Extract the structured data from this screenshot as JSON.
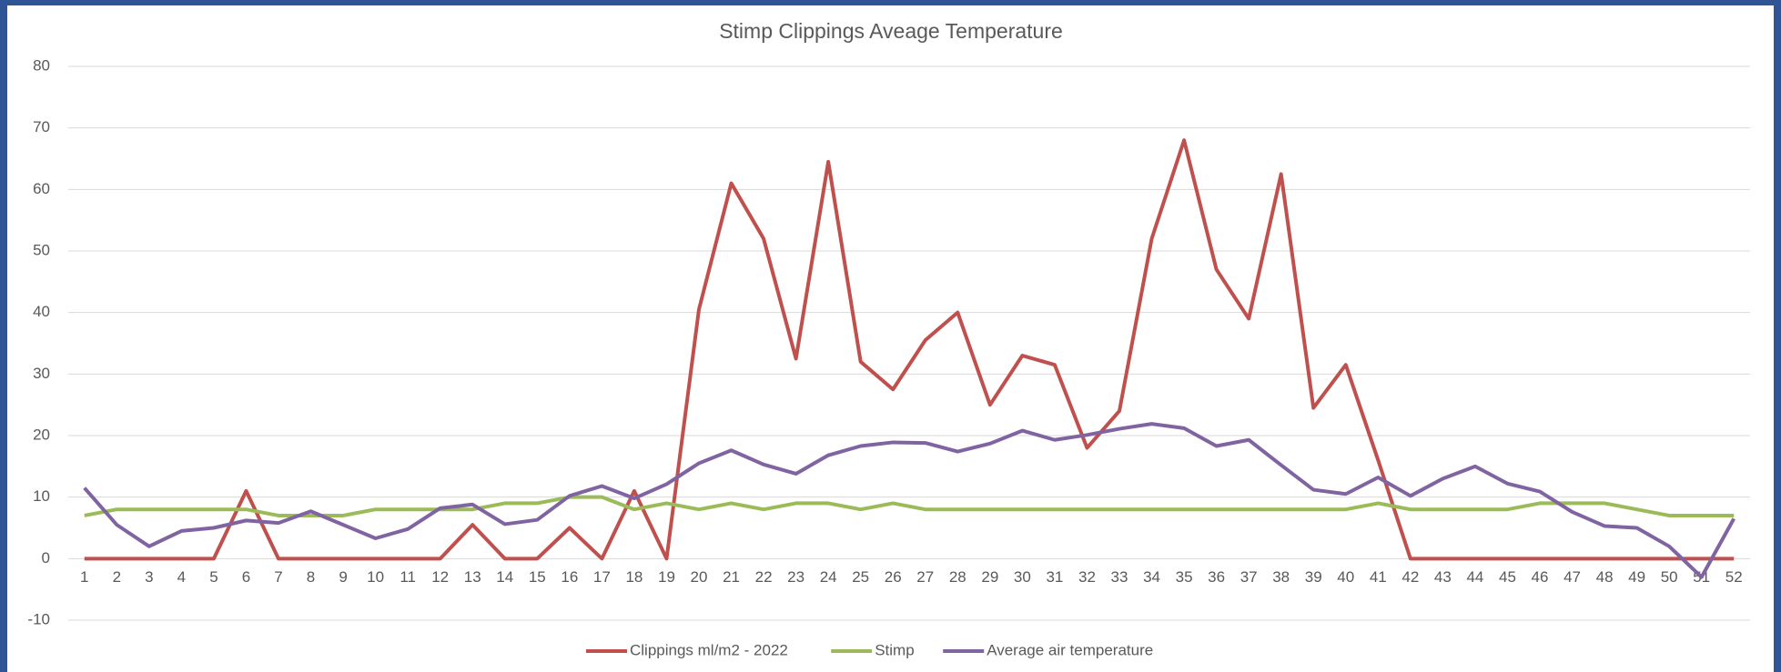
{
  "chart_data": {
    "type": "line",
    "title": "Stimp Clippings Aveage Temperature",
    "categories": [
      "1",
      "2",
      "3",
      "4",
      "5",
      "6",
      "7",
      "8",
      "9",
      "10",
      "11",
      "12",
      "13",
      "14",
      "15",
      "16",
      "17",
      "18",
      "19",
      "20",
      "21",
      "22",
      "23",
      "24",
      "25",
      "26",
      "27",
      "28",
      "29",
      "30",
      "31",
      "32",
      "33",
      "34",
      "35",
      "36",
      "37",
      "38",
      "39",
      "40",
      "41",
      "42",
      "43",
      "44",
      "45",
      "46",
      "47",
      "48",
      "49",
      "50",
      "51",
      "52"
    ],
    "series": [
      {
        "name": "Clippings ml/m2 - 2022",
        "color": "#c0504d",
        "values": [
          0,
          0,
          0,
          0,
          0,
          11,
          0,
          0,
          0,
          0,
          0,
          0,
          5.5,
          0,
          0,
          5,
          0,
          11,
          0,
          40.5,
          61,
          52,
          32.5,
          64.5,
          32,
          27.5,
          35.5,
          40,
          25,
          33,
          31.5,
          18,
          24,
          52,
          68,
          47,
          39,
          62.5,
          24.5,
          31.5,
          16,
          0,
          0,
          0,
          0,
          0,
          0,
          0,
          0,
          0,
          0,
          0
        ]
      },
      {
        "name": "Stimp",
        "color": "#9bbb59",
        "values": [
          7,
          8,
          8,
          8,
          8,
          8,
          7,
          7,
          7,
          8,
          8,
          8,
          8,
          9,
          9,
          10,
          10,
          8,
          9,
          8,
          9,
          8,
          9,
          9,
          8,
          9,
          8,
          8,
          8,
          8,
          8,
          8,
          8,
          8,
          8,
          8,
          8,
          8,
          8,
          8,
          9,
          8,
          8,
          8,
          8,
          9,
          9,
          9,
          8,
          7,
          7,
          7
        ]
      },
      {
        "name": "Average air temperature",
        "color": "#8064a2",
        "values": [
          11.5,
          5.5,
          2,
          4.5,
          5,
          6.2,
          5.8,
          7.7,
          5.5,
          3.3,
          4.8,
          8.2,
          8.8,
          5.6,
          6.3,
          10.2,
          11.8,
          9.8,
          12.1,
          15.5,
          17.6,
          15.3,
          13.8,
          16.8,
          18.3,
          18.9,
          18.8,
          17.4,
          18.7,
          20.8,
          19.3,
          20.1,
          21.1,
          21.9,
          21.2,
          18.3,
          19.3,
          15.2,
          11.2,
          10.5,
          13.2,
          10.2,
          13,
          15,
          12.2,
          10.9,
          7.6,
          5.3,
          5,
          2,
          -3,
          6.5
        ]
      }
    ],
    "ylim": [
      -10,
      80
    ],
    "yticks": [
      -10,
      0,
      10,
      20,
      30,
      40,
      50,
      60,
      70,
      80
    ],
    "grid": true,
    "legend": "bottom"
  }
}
